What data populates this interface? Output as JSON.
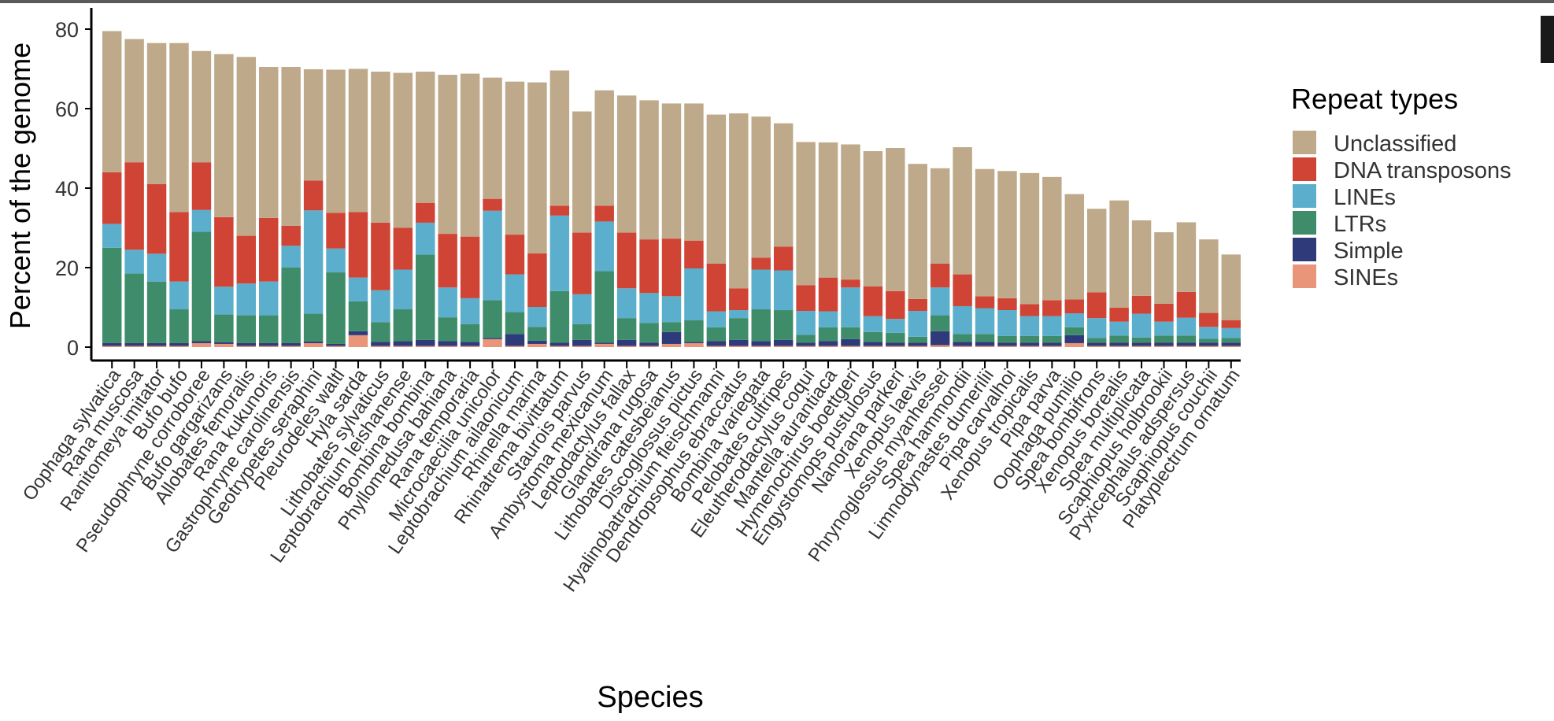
{
  "chart_data": {
    "type": "bar",
    "stacked": true,
    "xlabel": "Species",
    "ylabel": "Percent of the genome",
    "ylim": [
      0,
      82
    ],
    "yticks": [
      0,
      20,
      40,
      60,
      80
    ],
    "grid": false,
    "legend": {
      "title": "Repeat types",
      "position": "right"
    },
    "categories": [
      "Oophaga sylvatica",
      "Rana muscosa",
      "Ranitomeya imitator",
      "Bufo bufo",
      "Pseudophryne corroboree",
      "Bufo gargarizans",
      "Allobates femoralis",
      "Rana kukunoris",
      "Gastrophryne carolinensis",
      "Geotrypetes seraphini",
      "Pleurodeles waltl",
      "Hyla sarda",
      "Lithobates sylvaticus",
      "Leptobrachium leishanense",
      "Bombina bombina",
      "Phyllomedusa bahiana",
      "Rana temporaria",
      "Microcaecilia unicolor",
      "Leptobrachium ailaonicum",
      "Rhinella marina",
      "Rhinatrema bivittatum",
      "Staurois parvus",
      "Ambystoma mexicanum",
      "Leptodactylus fallax",
      "Glandirana rugosa",
      "Lithobates catesbeianus",
      "Discoglossus pictus",
      "Hyalinobatrachium fleischmanni",
      "Dendropsophus ebraccatus",
      "Bombina variegata",
      "Pelobates cultripes",
      "Eleutherodactylus coqui",
      "Mantella aurantiaca",
      "Hymenochirus boettgeri",
      "Engystomops pustulosus",
      "Nanorana parkeri",
      "Xenopus laevis",
      "Phrynoglossus myanhessei",
      "Spea hammondii",
      "Limnodynastes dumerilii",
      "Pipa carvalhoi",
      "Xenopus tropicalis",
      "Pipa parva",
      "Oophaga pumilio",
      "Spea bombifrons",
      "Xenopus borealis",
      "Spea multiplicata",
      "Scaphiopus holbrookii",
      "Pyxicephalus adspersus",
      "Scaphiopus couchii",
      "Platyplectrum ornatum"
    ],
    "series": [
      {
        "name": "SINEs",
        "color": "#E8957A",
        "values": [
          0.3,
          0.3,
          0.3,
          0.3,
          1.0,
          0.8,
          0.3,
          0.3,
          0.3,
          1.0,
          0.3,
          3.0,
          0.3,
          0.3,
          0.3,
          0.3,
          0.3,
          2.0,
          0.3,
          0.8,
          0.3,
          0.3,
          0.8,
          0.3,
          0.3,
          0.8,
          1.0,
          0.3,
          0.3,
          0.3,
          0.3,
          0.3,
          0.3,
          0.3,
          0.3,
          0.3,
          0.3,
          0.5,
          0.3,
          0.3,
          0.3,
          0.3,
          0.3,
          1.0,
          0.3,
          0.3,
          0.3,
          0.3,
          0.3,
          0.3,
          0.3
        ]
      },
      {
        "name": "Simple",
        "color": "#2E3A7A",
        "values": [
          0.7,
          0.7,
          0.7,
          0.7,
          0.5,
          0.4,
          0.7,
          0.7,
          0.7,
          0.4,
          0.5,
          1.0,
          1.0,
          1.2,
          1.5,
          1.2,
          1.0,
          0.3,
          3.0,
          0.8,
          0.8,
          1.5,
          0.3,
          1.5,
          0.8,
          3.0,
          0.3,
          1.2,
          1.5,
          1.2,
          1.5,
          0.8,
          1.2,
          1.7,
          1.0,
          0.8,
          0.8,
          3.5,
          1.0,
          1.0,
          0.8,
          0.8,
          0.8,
          2.0,
          0.8,
          0.8,
          0.8,
          0.8,
          0.8,
          0.8,
          0.8
        ]
      },
      {
        "name": "LTRs",
        "color": "#3E8C6A",
        "values": [
          24,
          17.5,
          15.5,
          8.5,
          27.5,
          7,
          7,
          7,
          19,
          7,
          18,
          7.5,
          5,
          8,
          21.5,
          6,
          4.5,
          9.5,
          5.5,
          3.5,
          13,
          4,
          18,
          5.5,
          5,
          2.5,
          5.5,
          3.5,
          5.5,
          8,
          7.5,
          2,
          3.5,
          3,
          2.5,
          2.5,
          1.5,
          4,
          2,
          2,
          1.7,
          1.7,
          1.7,
          2,
          1.2,
          1.8,
          1.3,
          1.8,
          1.8,
          1,
          1.2
        ]
      },
      {
        "name": "LINEs",
        "color": "#5BAECC",
        "values": [
          6,
          6,
          7,
          7,
          5.5,
          7,
          8,
          8.5,
          5.5,
          26,
          6,
          6,
          8,
          10,
          8,
          7.5,
          6.5,
          22.5,
          9.5,
          5,
          19,
          7.5,
          12.5,
          7.5,
          7.5,
          6.5,
          13,
          4,
          2,
          10,
          10,
          6,
          4,
          10,
          4,
          3.5,
          6.5,
          7,
          7,
          6.5,
          6.5,
          5,
          5,
          3.5,
          5,
          3.5,
          6,
          3.5,
          4.5,
          3,
          2.5
        ]
      },
      {
        "name": "DNA transposons",
        "color": "#D04436",
        "values": [
          13,
          22,
          17.5,
          17.5,
          12,
          17.5,
          12,
          16,
          5,
          7.5,
          9,
          16.5,
          17,
          10.5,
          5,
          13.5,
          15.5,
          3,
          10,
          13.5,
          2.5,
          15.5,
          4,
          14,
          13.5,
          14.5,
          7,
          12,
          5.5,
          3,
          6,
          6.5,
          8.5,
          2,
          7.5,
          7,
          3,
          6,
          8,
          3,
          3,
          3,
          4,
          3.5,
          6.5,
          3.5,
          4.5,
          4.5,
          6.5,
          3.5,
          2
        ]
      },
      {
        "name": "Unclassified",
        "color": "#BEAA8A",
        "values": [
          35.5,
          31,
          35.5,
          42.5,
          28,
          41,
          45,
          38,
          40,
          28,
          36,
          36,
          38,
          39,
          33,
          40,
          41,
          30.5,
          38.5,
          43,
          34,
          30.5,
          29,
          34.5,
          35,
          34,
          34.5,
          37.5,
          44,
          35.5,
          31,
          36,
          34,
          34,
          34,
          36,
          34,
          24,
          32,
          32,
          32,
          33,
          31,
          26.5,
          21,
          27,
          19,
          18,
          17.5,
          18.5,
          16.5
        ]
      }
    ]
  },
  "colors": {
    "axis": "#000000",
    "tick_text": "#333333"
  },
  "slivers": {
    "top": "#5a5a5a",
    "right": "#1a1a1a"
  }
}
